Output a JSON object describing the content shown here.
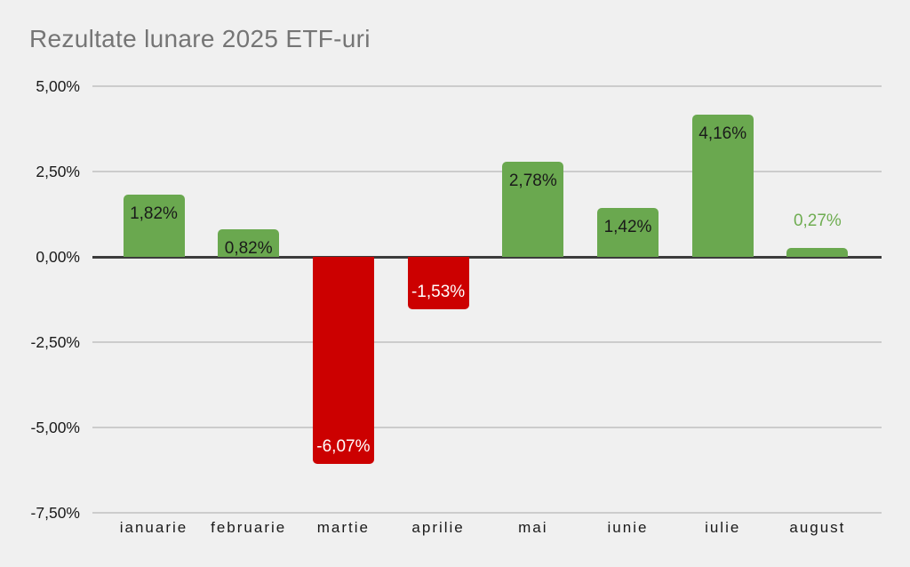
{
  "header": {
    "title": "Rezultate lunare 2025 ETF-uri"
  },
  "chart_data": {
    "type": "bar",
    "title": "Rezultate lunare 2025 ETF-uri",
    "categories": [
      "ianuarie",
      "februarie",
      "martie",
      "aprilie",
      "mai",
      "iunie",
      "iulie",
      "august"
    ],
    "values": [
      1.82,
      0.82,
      -6.07,
      -1.53,
      2.78,
      1.42,
      4.16,
      0.27
    ],
    "bar_labels": [
      "1,82%",
      "0,82%",
      "-6,07%",
      "-1,53%",
      "2,78%",
      "1,42%",
      "4,16%",
      "0,27%"
    ],
    "xlabel": "",
    "ylabel": "",
    "y_axis": {
      "tick_labels": [
        "5,00%",
        "2,50%",
        "0,00%",
        "-2,50%",
        "-5,00%",
        "-7,50%"
      ],
      "tick_values": [
        5,
        2.5,
        0,
        -2.5,
        -5,
        -7.5
      ],
      "ylim": [
        -7.5,
        5
      ],
      "grid": true
    },
    "legend": {
      "visible": false
    },
    "colors": {
      "positive_bar": "#6aa84f",
      "negative_bar": "#cc0000",
      "label_on_positive": "#1a1a1a",
      "label_on_negative": "#ffffff",
      "label_outside": "#6fad52",
      "background": "#f0f0f0",
      "title_text": "#757575",
      "gridline": "#cccccc",
      "zero_line": "#3c3c3c",
      "axis_text": "#1a1a1a"
    }
  }
}
